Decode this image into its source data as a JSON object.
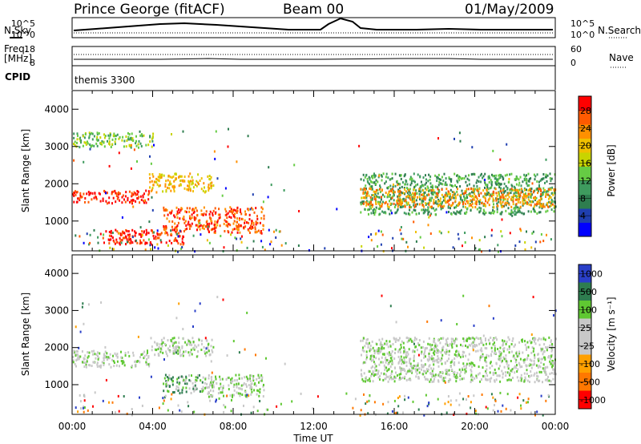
{
  "header": {
    "station": "Prince George (fitACF)",
    "beam": "Beam 00",
    "date": "01/May/2009"
  },
  "labels": {
    "nsky": "N.Sky",
    "nsearch": "N.Search",
    "freq_line1": "Freq.",
    "freq_line2": "[MHz]",
    "nave": "Nave",
    "cpid": "CPID",
    "cpid_value": "themis 3300",
    "yaxis": "Slant Range [km]",
    "xaxis": "Time UT",
    "power_label": "Power [dB]",
    "velocity_label": "Velocity [m s⁻¹]"
  },
  "small_axes": {
    "noise_left": [
      "10^5",
      "10^0"
    ],
    "noise_right": [
      "10^5",
      "10^0"
    ],
    "freq_left": [
      "18",
      "8"
    ],
    "nave_right": [
      "60",
      "0"
    ]
  },
  "colors": {
    "power": [
      "#0000ff",
      "#1f3fb0",
      "#2e7d4f",
      "#3e9b5e",
      "#66cc44",
      "#c8d400",
      "#f0c000",
      "#ff9000",
      "#ff5a00",
      "#ff0000"
    ],
    "velocity": [
      "#2a3fc8",
      "#2e7d4f",
      "#5fc832",
      "#c8c8c8",
      "#c8c8c8",
      "#ffa000",
      "#ff7800",
      "#ff0000"
    ]
  },
  "chart_data": [
    {
      "type": "heatmap",
      "title": "Power",
      "ylabel": "Slant Range [km]",
      "xlabel": "Time UT",
      "xlim": [
        0,
        24
      ],
      "ylim": [
        200,
        4500
      ],
      "x_ticks": [
        "00:00",
        "04:00",
        "08:00",
        "12:00",
        "16:00",
        "20:00",
        "00:00"
      ],
      "y_ticks": [
        1000,
        2000,
        3000,
        4000
      ],
      "colorbar": {
        "label": "Power [dB]",
        "ticks": [
          4,
          8,
          12,
          16,
          20,
          24,
          28
        ]
      },
      "regions": [
        {
          "t": [
            0.0,
            3.8
          ],
          "range": [
            1500,
            1850
          ],
          "level": 9
        },
        {
          "t": [
            3.8,
            7.0
          ],
          "range": [
            1800,
            2300
          ],
          "level": 6
        },
        {
          "t": [
            0.0,
            4.0
          ],
          "range": [
            3000,
            3400
          ],
          "level": 4
        },
        {
          "t": [
            4.5,
            9.5
          ],
          "range": [
            700,
            1400
          ],
          "level": 8
        },
        {
          "t": [
            1.5,
            5.5
          ],
          "range": [
            400,
            800
          ],
          "level": 9
        },
        {
          "t": [
            14.3,
            24.0
          ],
          "range": [
            1200,
            2300
          ],
          "level": 3
        },
        {
          "t": [
            14.3,
            24.0
          ],
          "range": [
            1400,
            1900
          ],
          "level": 7
        }
      ]
    },
    {
      "type": "heatmap",
      "title": "Velocity",
      "ylabel": "Slant Range [km]",
      "xlabel": "Time UT",
      "xlim": [
        0,
        24
      ],
      "ylim": [
        200,
        4500
      ],
      "x_ticks": [
        "00:00",
        "04:00",
        "08:00",
        "12:00",
        "16:00",
        "20:00",
        "00:00"
      ],
      "y_ticks": [
        1000,
        2000,
        3000,
        4000
      ],
      "colorbar": {
        "label": "Velocity [m s⁻¹]",
        "ticks": [
          1000,
          500,
          100,
          25,
          -25,
          -100,
          -500,
          -1000
        ]
      },
      "regions": [
        {
          "t": [
            0.0,
            3.8
          ],
          "range": [
            1500,
            1950
          ],
          "level": 3
        },
        {
          "t": [
            3.8,
            7.0
          ],
          "range": [
            1800,
            2300
          ],
          "level": 3
        },
        {
          "t": [
            4.5,
            6.5
          ],
          "range": [
            800,
            1300
          ],
          "level": 2
        },
        {
          "t": [
            6.5,
            9.5
          ],
          "range": [
            700,
            1300
          ],
          "level": 3
        },
        {
          "t": [
            14.3,
            24.0
          ],
          "range": [
            1100,
            2300
          ],
          "level": 3
        }
      ]
    }
  ]
}
